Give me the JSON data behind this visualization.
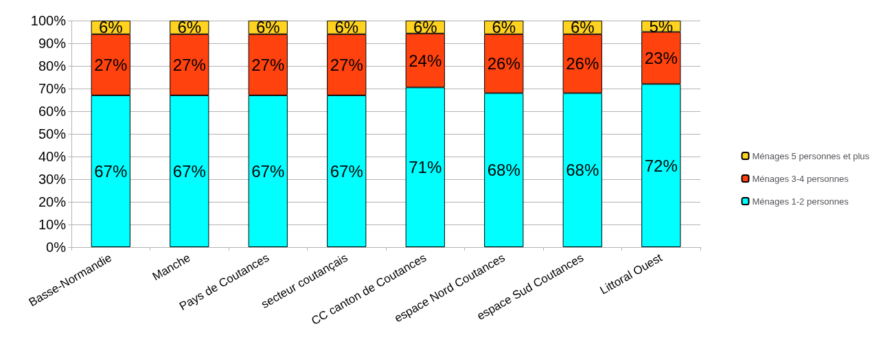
{
  "chart_data": {
    "type": "bar",
    "stacked": true,
    "categories": [
      "Basse-Normandie",
      "Manche",
      "Pays de Coutances",
      "secteur coutançais",
      "CC canton de Coutances",
      "espace Nord Coutances",
      "espace Sud Coutances",
      "Littoral Ouest"
    ],
    "series": [
      {
        "name": "Ménages 1-2 personnes",
        "color": "#00ffff",
        "values": [
          67,
          67,
          67,
          67,
          70.5,
          68,
          68,
          72
        ],
        "value_labels": [
          "67%",
          "67%",
          "67%",
          "67%",
          "71%",
          "68%",
          "68%",
          "72%"
        ]
      },
      {
        "name": "Ménages 3-4 personnes",
        "color": "#ff420e",
        "values": [
          27,
          27,
          27,
          27,
          23.8,
          26,
          26,
          23
        ],
        "value_labels": [
          "27%",
          "27%",
          "27%",
          "27%",
          "24%",
          "26%",
          "26%",
          "23%"
        ]
      },
      {
        "name": "Ménages 5 personnes et plus",
        "color": "#ffd320",
        "values": [
          6,
          6,
          6,
          6,
          5.7,
          6,
          6,
          5
        ],
        "value_labels": [
          "6%",
          "6%",
          "6%",
          "6%",
          "6%",
          "6%",
          "6%",
          "5%"
        ]
      }
    ],
    "ylim": [
      0,
      100
    ],
    "yticks": [
      {
        "value": 0,
        "label": "0%"
      },
      {
        "value": 10,
        "label": "10%"
      },
      {
        "value": 20,
        "label": "20%"
      },
      {
        "value": 30,
        "label": "30%"
      },
      {
        "value": 40,
        "label": "40%"
      },
      {
        "value": 50,
        "label": "50%"
      },
      {
        "value": 60,
        "label": "60%"
      },
      {
        "value": 70,
        "label": "70%"
      },
      {
        "value": 80,
        "label": "80%"
      },
      {
        "value": 90,
        "label": "90%"
      },
      {
        "value": 100,
        "label": "100%"
      }
    ],
    "grid": "y",
    "legend": "right"
  }
}
